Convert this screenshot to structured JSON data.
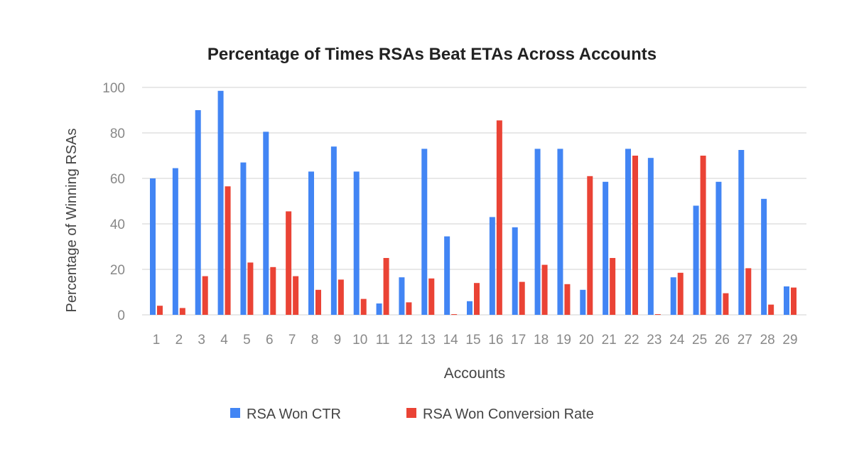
{
  "chart_data": {
    "type": "bar",
    "title": "Percentage of Times RSAs Beat ETAs Across Accounts",
    "xlabel": "Accounts",
    "ylabel": "Percentage of Winning RSAs",
    "ylim": [
      0,
      100
    ],
    "yticks": [
      "0",
      "20",
      "40",
      "60",
      "80",
      "100"
    ],
    "grid": true,
    "legend_position": "bottom",
    "categories": [
      "1",
      "2",
      "3",
      "4",
      "5",
      "6",
      "7",
      "8",
      "9",
      "10",
      "11",
      "12",
      "13",
      "14",
      "15",
      "16",
      "17",
      "18",
      "19",
      "20",
      "21",
      "22",
      "23",
      "24",
      "25",
      "26",
      "27",
      "28",
      "29"
    ],
    "series": [
      {
        "name": "RSA Won CTR",
        "color": "#4285f4",
        "point_colors": {
          "7": "#ea4335"
        },
        "values": [
          60,
          64.5,
          90,
          98.5,
          67,
          80.5,
          45.5,
          63,
          74,
          63,
          5,
          16.5,
          73,
          34.5,
          6,
          43,
          38.5,
          73,
          73,
          11,
          58.5,
          73,
          69,
          16.5,
          48,
          58.5,
          72.5,
          51,
          12.5
        ]
      },
      {
        "name": "RSA Won Conversion Rate",
        "color": "#ea4335",
        "values": [
          4,
          3,
          17,
          56.5,
          23,
          21,
          17,
          11,
          15.5,
          7,
          25,
          5.5,
          16,
          0.3,
          14,
          85.5,
          14.5,
          22,
          13.5,
          61,
          25,
          70,
          0.3,
          18.5,
          70,
          9.5,
          20.5,
          4.5,
          12
        ]
      }
    ]
  }
}
